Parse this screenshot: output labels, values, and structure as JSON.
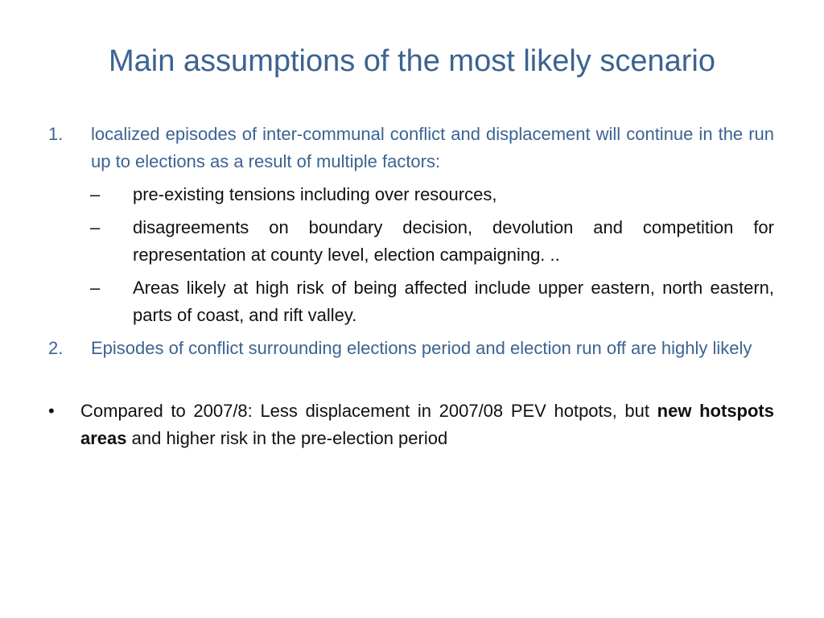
{
  "slide": {
    "title": "Main assumptions of the most likely scenario",
    "numbered_items": [
      {
        "marker": "1.",
        "text": "localized episodes of inter-communal conflict and displacement will continue in the run up to elections as a result of multiple factors:",
        "subitems": [
          {
            "marker": "–",
            "text": "pre-existing tensions including over resources,"
          },
          {
            "marker": "–",
            "text": "disagreements on boundary decision, devolution and competition for representation at county level, election campaigning. .."
          },
          {
            "marker": "–",
            "text": "Areas likely at high risk of being affected include upper eastern, north eastern, parts of coast, and rift valley."
          }
        ]
      },
      {
        "marker": "2.",
        "text": "Episodes of conflict surrounding elections period and election run off are highly likely"
      }
    ],
    "bullet": {
      "marker": "•",
      "text_before": "Compared to 2007/8: Less displacement in 2007/08 PEV hotpots, but ",
      "bold_text": "new hotspots areas",
      "text_after": " and higher risk in the pre-election period"
    }
  }
}
